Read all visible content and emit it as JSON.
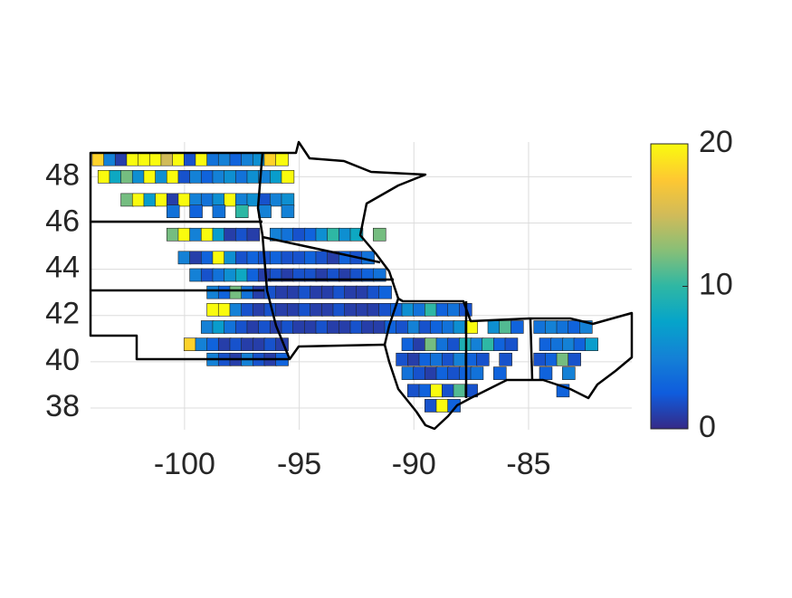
{
  "chart_data": {
    "type": "choropleth",
    "xlim": [
      -104.1,
      -80.5
    ],
    "ylim": [
      37.06,
      49.5
    ],
    "xticks": [
      -100,
      -95,
      -90,
      -85
    ],
    "yticks": [
      38,
      40,
      42,
      44,
      46,
      48
    ],
    "grid": true,
    "colorbar": {
      "clim": [
        0,
        20
      ],
      "ticks": [
        0,
        10,
        20
      ],
      "colormap": [
        "#352a87",
        "#0f5cdd",
        "#1481d6",
        "#06a4ca",
        "#2eb7a4",
        "#87bf77",
        "#d1bb59",
        "#fec832",
        "#f9fb0e"
      ]
    },
    "points": [
      {
        "lon": -103.75,
        "lat": 48.75,
        "value": 18
      },
      {
        "lon": -103.25,
        "lat": 48.75,
        "value": 5
      },
      {
        "lon": -102.75,
        "lat": 48.75,
        "value": 1
      },
      {
        "lon": -102.25,
        "lat": 48.75,
        "value": 20
      },
      {
        "lon": -101.75,
        "lat": 48.75,
        "value": 20
      },
      {
        "lon": -101.25,
        "lat": 48.75,
        "value": 20
      },
      {
        "lon": -100.75,
        "lat": 48.75,
        "value": 15
      },
      {
        "lon": -100.25,
        "lat": 48.75,
        "value": 20
      },
      {
        "lon": -99.75,
        "lat": 48.75,
        "value": 2
      },
      {
        "lon": -99.25,
        "lat": 48.75,
        "value": 20
      },
      {
        "lon": -98.75,
        "lat": 48.75,
        "value": 4
      },
      {
        "lon": -98.25,
        "lat": 48.75,
        "value": 5
      },
      {
        "lon": -97.75,
        "lat": 48.75,
        "value": 3
      },
      {
        "lon": -97.25,
        "lat": 48.75,
        "value": 5
      },
      {
        "lon": -96.75,
        "lat": 48.75,
        "value": 6
      },
      {
        "lon": -96.25,
        "lat": 48.75,
        "value": 18
      },
      {
        "lon": -95.75,
        "lat": 48.75,
        "value": 20
      },
      {
        "lon": -103.5,
        "lat": 48.0,
        "value": 20
      },
      {
        "lon": -103.0,
        "lat": 48.0,
        "value": 8
      },
      {
        "lon": -102.5,
        "lat": 48.0,
        "value": 12
      },
      {
        "lon": -102.0,
        "lat": 48.0,
        "value": 6
      },
      {
        "lon": -101.5,
        "lat": 48.0,
        "value": 20
      },
      {
        "lon": -101.0,
        "lat": 48.0,
        "value": 6
      },
      {
        "lon": -100.5,
        "lat": 48.0,
        "value": 20
      },
      {
        "lon": -100.0,
        "lat": 48.0,
        "value": 2
      },
      {
        "lon": -99.5,
        "lat": 48.0,
        "value": 5
      },
      {
        "lon": -99.0,
        "lat": 48.0,
        "value": 3
      },
      {
        "lon": -98.5,
        "lat": 48.0,
        "value": 5
      },
      {
        "lon": -98.0,
        "lat": 48.0,
        "value": 6
      },
      {
        "lon": -97.5,
        "lat": 48.0,
        "value": 4
      },
      {
        "lon": -97.0,
        "lat": 48.0,
        "value": 6
      },
      {
        "lon": -96.5,
        "lat": 48.0,
        "value": 5
      },
      {
        "lon": -96.0,
        "lat": 48.0,
        "value": 7
      },
      {
        "lon": -95.5,
        "lat": 48.0,
        "value": 20
      },
      {
        "lon": -102.5,
        "lat": 47.0,
        "value": 12
      },
      {
        "lon": -102.0,
        "lat": 47.0,
        "value": 20
      },
      {
        "lon": -101.5,
        "lat": 47.0,
        "value": 7
      },
      {
        "lon": -101.0,
        "lat": 47.0,
        "value": 20
      },
      {
        "lon": -100.5,
        "lat": 47.0,
        "value": 1
      },
      {
        "lon": -100.0,
        "lat": 47.0,
        "value": 20
      },
      {
        "lon": -99.5,
        "lat": 47.0,
        "value": 5
      },
      {
        "lon": -99.0,
        "lat": 47.0,
        "value": 4
      },
      {
        "lon": -98.5,
        "lat": 47.0,
        "value": 6
      },
      {
        "lon": -98.0,
        "lat": 47.0,
        "value": 20
      },
      {
        "lon": -97.5,
        "lat": 47.0,
        "value": 5
      },
      {
        "lon": -97.0,
        "lat": 47.0,
        "value": 6
      },
      {
        "lon": -96.5,
        "lat": 47.0,
        "value": 2
      },
      {
        "lon": -96.0,
        "lat": 47.0,
        "value": 5
      },
      {
        "lon": -95.5,
        "lat": 47.0,
        "value": 6
      },
      {
        "lon": -100.5,
        "lat": 46.5,
        "value": 4
      },
      {
        "lon": -99.5,
        "lat": 46.5,
        "value": 3
      },
      {
        "lon": -98.5,
        "lat": 46.5,
        "value": 4
      },
      {
        "lon": -97.5,
        "lat": 46.5,
        "value": 10
      },
      {
        "lon": -96.5,
        "lat": 46.5,
        "value": 5
      },
      {
        "lon": -95.5,
        "lat": 46.5,
        "value": 5
      },
      {
        "lon": -100.5,
        "lat": 45.5,
        "value": 12
      },
      {
        "lon": -100.0,
        "lat": 45.5,
        "value": 20
      },
      {
        "lon": -99.5,
        "lat": 45.5,
        "value": 5
      },
      {
        "lon": -99.0,
        "lat": 45.5,
        "value": 20
      },
      {
        "lon": -98.5,
        "lat": 45.5,
        "value": 7
      },
      {
        "lon": -98.0,
        "lat": 45.5,
        "value": 1
      },
      {
        "lon": -97.5,
        "lat": 45.5,
        "value": 2
      },
      {
        "lon": -97.0,
        "lat": 45.5,
        "value": 1
      },
      {
        "lon": -96.0,
        "lat": 45.5,
        "value": 5
      },
      {
        "lon": -95.5,
        "lat": 45.5,
        "value": 4
      },
      {
        "lon": -95.0,
        "lat": 45.5,
        "value": 2
      },
      {
        "lon": -94.5,
        "lat": 45.5,
        "value": 3
      },
      {
        "lon": -94.0,
        "lat": 45.5,
        "value": 6
      },
      {
        "lon": -93.5,
        "lat": 45.5,
        "value": 10
      },
      {
        "lon": -93.0,
        "lat": 45.5,
        "value": 6
      },
      {
        "lon": -92.5,
        "lat": 45.5,
        "value": 8
      },
      {
        "lon": -91.5,
        "lat": 45.5,
        "value": 12
      },
      {
        "lon": -100.0,
        "lat": 44.5,
        "value": 5
      },
      {
        "lon": -99.5,
        "lat": 44.5,
        "value": 1
      },
      {
        "lon": -99.0,
        "lat": 44.5,
        "value": 3
      },
      {
        "lon": -98.5,
        "lat": 44.5,
        "value": 20
      },
      {
        "lon": -98.0,
        "lat": 44.5,
        "value": 6
      },
      {
        "lon": -97.5,
        "lat": 44.5,
        "value": 2
      },
      {
        "lon": -97.0,
        "lat": 44.5,
        "value": 3
      },
      {
        "lon": -96.5,
        "lat": 44.5,
        "value": 2
      },
      {
        "lon": -96.0,
        "lat": 44.5,
        "value": 3
      },
      {
        "lon": -95.5,
        "lat": 44.5,
        "value": 2
      },
      {
        "lon": -95.0,
        "lat": 44.5,
        "value": 2
      },
      {
        "lon": -94.5,
        "lat": 44.5,
        "value": 3
      },
      {
        "lon": -94.0,
        "lat": 44.5,
        "value": 2
      },
      {
        "lon": -93.5,
        "lat": 44.5,
        "value": 1
      },
      {
        "lon": -93.0,
        "lat": 44.5,
        "value": 3
      },
      {
        "lon": -92.5,
        "lat": 44.5,
        "value": 2
      },
      {
        "lon": -92.0,
        "lat": 44.5,
        "value": 4
      },
      {
        "lon": -99.5,
        "lat": 43.75,
        "value": 5
      },
      {
        "lon": -99.0,
        "lat": 43.75,
        "value": 2
      },
      {
        "lon": -98.5,
        "lat": 43.75,
        "value": 4
      },
      {
        "lon": -98.0,
        "lat": 43.75,
        "value": 6
      },
      {
        "lon": -97.5,
        "lat": 43.75,
        "value": 8
      },
      {
        "lon": -97.0,
        "lat": 43.75,
        "value": 3
      },
      {
        "lon": -96.5,
        "lat": 43.75,
        "value": 1
      },
      {
        "lon": -96.0,
        "lat": 43.75,
        "value": 2
      },
      {
        "lon": -95.5,
        "lat": 43.75,
        "value": 1
      },
      {
        "lon": -95.0,
        "lat": 43.75,
        "value": 2
      },
      {
        "lon": -94.5,
        "lat": 43.75,
        "value": 2
      },
      {
        "lon": -94.0,
        "lat": 43.75,
        "value": 1
      },
      {
        "lon": -93.5,
        "lat": 43.75,
        "value": 2
      },
      {
        "lon": -93.0,
        "lat": 43.75,
        "value": 1
      },
      {
        "lon": -92.5,
        "lat": 43.75,
        "value": 2
      },
      {
        "lon": -92.0,
        "lat": 43.75,
        "value": 3
      },
      {
        "lon": -91.5,
        "lat": 43.75,
        "value": 4
      },
      {
        "lon": -98.75,
        "lat": 43.0,
        "value": 5
      },
      {
        "lon": -98.25,
        "lat": 43.0,
        "value": 3
      },
      {
        "lon": -97.75,
        "lat": 43.0,
        "value": 12
      },
      {
        "lon": -97.25,
        "lat": 43.0,
        "value": 4
      },
      {
        "lon": -96.75,
        "lat": 43.0,
        "value": 1
      },
      {
        "lon": -96.25,
        "lat": 43.0,
        "value": 2
      },
      {
        "lon": -95.75,
        "lat": 43.0,
        "value": 1
      },
      {
        "lon": -95.25,
        "lat": 43.0,
        "value": 1
      },
      {
        "lon": -94.75,
        "lat": 43.0,
        "value": 2
      },
      {
        "lon": -94.25,
        "lat": 43.0,
        "value": 1
      },
      {
        "lon": -93.75,
        "lat": 43.0,
        "value": 1
      },
      {
        "lon": -93.25,
        "lat": 43.0,
        "value": 2
      },
      {
        "lon": -92.75,
        "lat": 43.0,
        "value": 1
      },
      {
        "lon": -92.25,
        "lat": 43.0,
        "value": 1
      },
      {
        "lon": -91.75,
        "lat": 43.0,
        "value": 2
      },
      {
        "lon": -91.25,
        "lat": 43.0,
        "value": 3
      },
      {
        "lon": -98.75,
        "lat": 42.25,
        "value": 20
      },
      {
        "lon": -98.25,
        "lat": 42.25,
        "value": 20
      },
      {
        "lon": -97.75,
        "lat": 42.25,
        "value": 5
      },
      {
        "lon": -97.25,
        "lat": 42.25,
        "value": 2
      },
      {
        "lon": -96.75,
        "lat": 42.25,
        "value": 1
      },
      {
        "lon": -96.25,
        "lat": 42.25,
        "value": 2
      },
      {
        "lon": -95.75,
        "lat": 42.25,
        "value": 1
      },
      {
        "lon": -95.25,
        "lat": 42.25,
        "value": 1
      },
      {
        "lon": -94.75,
        "lat": 42.25,
        "value": 2
      },
      {
        "lon": -94.25,
        "lat": 42.25,
        "value": 1
      },
      {
        "lon": -93.75,
        "lat": 42.25,
        "value": 1
      },
      {
        "lon": -93.25,
        "lat": 42.25,
        "value": 2
      },
      {
        "lon": -92.75,
        "lat": 42.25,
        "value": 1
      },
      {
        "lon": -92.25,
        "lat": 42.25,
        "value": 1
      },
      {
        "lon": -91.75,
        "lat": 42.25,
        "value": 1
      },
      {
        "lon": -91.25,
        "lat": 42.25,
        "value": 2
      },
      {
        "lon": -90.75,
        "lat": 42.25,
        "value": 3
      },
      {
        "lon": -90.25,
        "lat": 42.25,
        "value": 6
      },
      {
        "lon": -89.75,
        "lat": 42.25,
        "value": 4
      },
      {
        "lon": -89.25,
        "lat": 42.25,
        "value": 10
      },
      {
        "lon": -88.75,
        "lat": 42.25,
        "value": 3
      },
      {
        "lon": -88.25,
        "lat": 42.25,
        "value": 4
      },
      {
        "lon": -87.75,
        "lat": 42.25,
        "value": 2
      },
      {
        "lon": -99.0,
        "lat": 41.5,
        "value": 5
      },
      {
        "lon": -98.5,
        "lat": 41.5,
        "value": 7
      },
      {
        "lon": -98.0,
        "lat": 41.5,
        "value": 4
      },
      {
        "lon": -97.5,
        "lat": 41.5,
        "value": 2
      },
      {
        "lon": -97.0,
        "lat": 41.5,
        "value": 1
      },
      {
        "lon": -96.5,
        "lat": 41.5,
        "value": 2
      },
      {
        "lon": -96.0,
        "lat": 41.5,
        "value": 1
      },
      {
        "lon": -95.5,
        "lat": 41.5,
        "value": 2
      },
      {
        "lon": -95.0,
        "lat": 41.5,
        "value": 1
      },
      {
        "lon": -94.5,
        "lat": 41.5,
        "value": 1
      },
      {
        "lon": -94.0,
        "lat": 41.5,
        "value": 2
      },
      {
        "lon": -93.5,
        "lat": 41.5,
        "value": 1
      },
      {
        "lon": -93.0,
        "lat": 41.5,
        "value": 1
      },
      {
        "lon": -92.5,
        "lat": 41.5,
        "value": 2
      },
      {
        "lon": -92.0,
        "lat": 41.5,
        "value": 1
      },
      {
        "lon": -91.5,
        "lat": 41.5,
        "value": 1
      },
      {
        "lon": -91.0,
        "lat": 41.5,
        "value": 3
      },
      {
        "lon": -90.5,
        "lat": 41.5,
        "value": 2
      },
      {
        "lon": -90.0,
        "lat": 41.5,
        "value": 5
      },
      {
        "lon": -89.5,
        "lat": 41.5,
        "value": 2
      },
      {
        "lon": -89.0,
        "lat": 41.5,
        "value": 3
      },
      {
        "lon": -88.5,
        "lat": 41.5,
        "value": 4
      },
      {
        "lon": -88.0,
        "lat": 41.5,
        "value": 6
      },
      {
        "lon": -87.5,
        "lat": 41.5,
        "value": 20
      },
      {
        "lon": -86.5,
        "lat": 41.5,
        "value": 6
      },
      {
        "lon": -86.0,
        "lat": 41.5,
        "value": 11
      },
      {
        "lon": -85.5,
        "lat": 41.5,
        "value": 3
      },
      {
        "lon": -84.5,
        "lat": 41.5,
        "value": 4
      },
      {
        "lon": -84.0,
        "lat": 41.5,
        "value": 5
      },
      {
        "lon": -83.5,
        "lat": 41.5,
        "value": 4
      },
      {
        "lon": -83.0,
        "lat": 41.5,
        "value": 3
      },
      {
        "lon": -82.5,
        "lat": 41.5,
        "value": 5
      },
      {
        "lon": -99.75,
        "lat": 40.75,
        "value": 18
      },
      {
        "lon": -99.25,
        "lat": 40.75,
        "value": 5
      },
      {
        "lon": -98.75,
        "lat": 40.75,
        "value": 3
      },
      {
        "lon": -98.25,
        "lat": 40.75,
        "value": 1
      },
      {
        "lon": -97.75,
        "lat": 40.75,
        "value": 2
      },
      {
        "lon": -97.25,
        "lat": 40.75,
        "value": 1
      },
      {
        "lon": -96.75,
        "lat": 40.75,
        "value": 1
      },
      {
        "lon": -96.25,
        "lat": 40.75,
        "value": 2
      },
      {
        "lon": -95.75,
        "lat": 40.75,
        "value": 1
      },
      {
        "lon": -90.25,
        "lat": 40.75,
        "value": 3
      },
      {
        "lon": -89.75,
        "lat": 40.75,
        "value": 1
      },
      {
        "lon": -89.25,
        "lat": 40.75,
        "value": 12
      },
      {
        "lon": -88.75,
        "lat": 40.75,
        "value": 4
      },
      {
        "lon": -88.25,
        "lat": 40.75,
        "value": 2
      },
      {
        "lon": -87.75,
        "lat": 40.75,
        "value": 9
      },
      {
        "lon": -87.25,
        "lat": 40.75,
        "value": 5
      },
      {
        "lon": -86.75,
        "lat": 40.75,
        "value": 10
      },
      {
        "lon": -86.25,
        "lat": 40.75,
        "value": 3
      },
      {
        "lon": -85.75,
        "lat": 40.75,
        "value": 2
      },
      {
        "lon": -84.25,
        "lat": 40.75,
        "value": 3
      },
      {
        "lon": -83.75,
        "lat": 40.75,
        "value": 4
      },
      {
        "lon": -83.25,
        "lat": 40.75,
        "value": 5
      },
      {
        "lon": -82.75,
        "lat": 40.75,
        "value": 3
      },
      {
        "lon": -82.25,
        "lat": 40.75,
        "value": 7
      },
      {
        "lon": -98.75,
        "lat": 40.1,
        "value": 5
      },
      {
        "lon": -98.25,
        "lat": 40.1,
        "value": 2
      },
      {
        "lon": -97.75,
        "lat": 40.1,
        "value": 1
      },
      {
        "lon": -97.25,
        "lat": 40.1,
        "value": 5
      },
      {
        "lon": -96.75,
        "lat": 40.1,
        "value": 2
      },
      {
        "lon": -96.25,
        "lat": 40.1,
        "value": 1
      },
      {
        "lon": -95.75,
        "lat": 40.1,
        "value": 3
      },
      {
        "lon": -90.5,
        "lat": 40.1,
        "value": 2
      },
      {
        "lon": -90.0,
        "lat": 40.1,
        "value": 1
      },
      {
        "lon": -89.5,
        "lat": 40.1,
        "value": 3
      },
      {
        "lon": -89.0,
        "lat": 40.1,
        "value": 4
      },
      {
        "lon": -88.5,
        "lat": 40.1,
        "value": 2
      },
      {
        "lon": -88.0,
        "lat": 40.1,
        "value": 5
      },
      {
        "lon": -87.5,
        "lat": 40.1,
        "value": 3
      },
      {
        "lon": -87.0,
        "lat": 40.1,
        "value": 2
      },
      {
        "lon": -86.0,
        "lat": 40.1,
        "value": 2
      },
      {
        "lon": -84.5,
        "lat": 40.1,
        "value": 2
      },
      {
        "lon": -84.0,
        "lat": 40.1,
        "value": 3
      },
      {
        "lon": -83.5,
        "lat": 40.1,
        "value": 12
      },
      {
        "lon": -83.0,
        "lat": 40.1,
        "value": 2
      },
      {
        "lon": -90.25,
        "lat": 39.5,
        "value": 4
      },
      {
        "lon": -89.75,
        "lat": 39.5,
        "value": 2
      },
      {
        "lon": -89.25,
        "lat": 39.5,
        "value": 1
      },
      {
        "lon": -88.75,
        "lat": 39.5,
        "value": 3
      },
      {
        "lon": -88.25,
        "lat": 39.5,
        "value": 2
      },
      {
        "lon": -87.75,
        "lat": 39.5,
        "value": 3
      },
      {
        "lon": -87.25,
        "lat": 39.5,
        "value": 4
      },
      {
        "lon": -86.25,
        "lat": 39.5,
        "value": 3
      },
      {
        "lon": -84.25,
        "lat": 39.5,
        "value": 3
      },
      {
        "lon": -83.25,
        "lat": 39.5,
        "value": 5
      },
      {
        "lon": -90.0,
        "lat": 38.75,
        "value": 2
      },
      {
        "lon": -89.5,
        "lat": 38.75,
        "value": 3
      },
      {
        "lon": -89.0,
        "lat": 38.75,
        "value": 20
      },
      {
        "lon": -88.5,
        "lat": 38.75,
        "value": 2
      },
      {
        "lon": -88.0,
        "lat": 38.75,
        "value": 11
      },
      {
        "lon": -87.5,
        "lat": 38.75,
        "value": 2
      },
      {
        "lon": -83.5,
        "lat": 38.75,
        "value": 3
      },
      {
        "lon": -89.25,
        "lat": 38.1,
        "value": 2
      },
      {
        "lon": -88.75,
        "lat": 38.1,
        "value": 20
      },
      {
        "lon": -88.25,
        "lat": 38.1,
        "value": 3
      }
    ]
  }
}
